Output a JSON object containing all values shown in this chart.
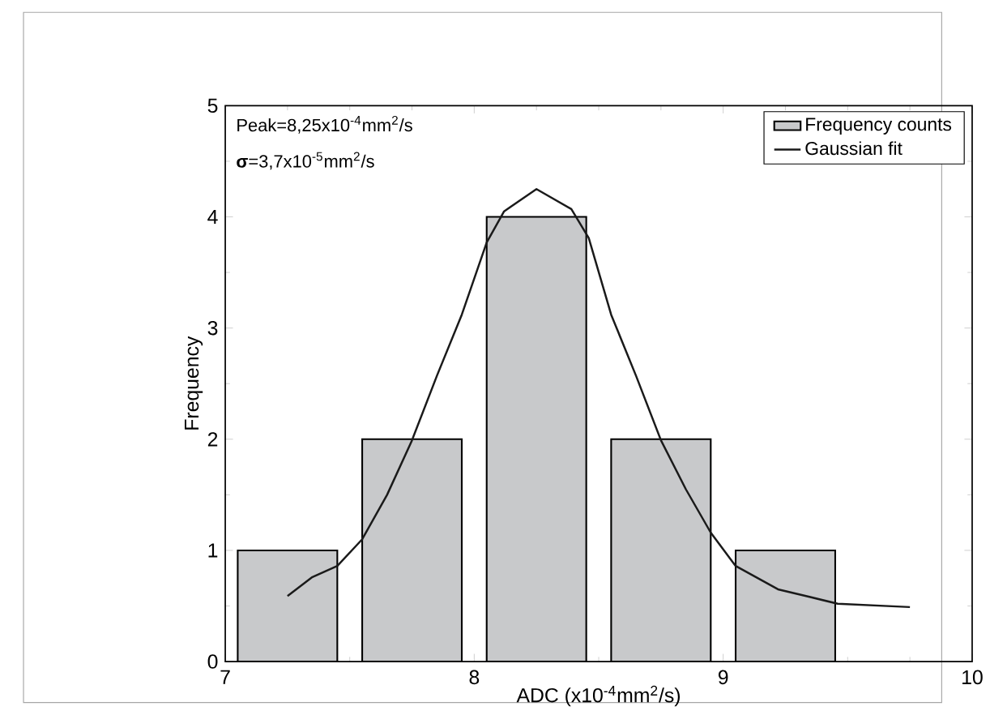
{
  "chart_data": {
    "type": "bar",
    "xlabel": "ADC   (x10$^{-4}$mm$^{2}$/s)",
    "ylabel": "Frequency",
    "xlim": [
      7,
      10
    ],
    "ylim": [
      0,
      5
    ],
    "xticks": [
      7,
      8,
      9,
      10
    ],
    "yticks": [
      0,
      1,
      2,
      3,
      4,
      5
    ],
    "legend": "top right",
    "annotations": [
      "Peak=8,25x10$^{-4}$mm$^{2}$/s",
      "**σ**=3,7x10$^{-5}$mm$^{2}$/s"
    ],
    "series": [
      {
        "name": "Frequency counts",
        "color": "#c8c9cb",
        "x": [
          7.25,
          7.75,
          8.25,
          8.75,
          9.25
        ],
        "values": [
          1,
          2,
          4,
          2,
          1
        ]
      },
      {
        "name": "Gaussian fit",
        "type": "line",
        "color": "#1a1a1a",
        "x": [
          7.25,
          7.35,
          7.45,
          7.55,
          7.65,
          7.75,
          7.85,
          7.95,
          8.05,
          8.12,
          8.25,
          8.39,
          8.46,
          8.55,
          8.65,
          8.75,
          8.85,
          8.95,
          9.05,
          9.22,
          9.35,
          9.46,
          9.75
        ],
        "values": [
          0.59,
          0.76,
          0.86,
          1.1,
          1.5,
          1.99,
          2.57,
          3.12,
          3.77,
          4.05,
          4.25,
          4.07,
          3.81,
          3.12,
          2.57,
          1.99,
          1.55,
          1.16,
          0.86,
          0.65,
          0.58,
          0.52,
          0.49
        ]
      }
    ]
  }
}
